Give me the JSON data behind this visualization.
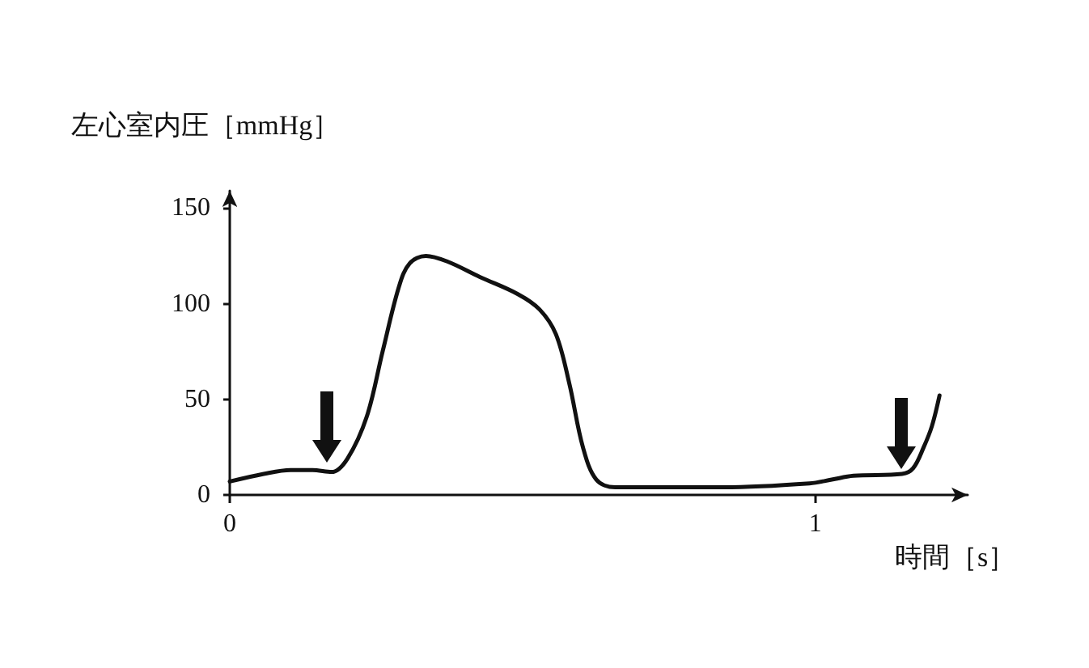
{
  "chart_data": {
    "type": "line",
    "xlabel": "時間［s］",
    "ylabel": "左心室内圧［mmHg］",
    "xlim": [
      0,
      1.26
    ],
    "xticks": [
      0,
      1
    ],
    "ylim": [
      0,
      159
    ],
    "yticks": [
      0,
      50,
      100,
      150
    ],
    "grid": false,
    "marker": "none",
    "line_style": "solid",
    "series": [
      {
        "color": "#111111",
        "x": [
          0,
          0.058,
          0.104,
          0.141,
          0.174,
          0.201,
          0.234,
          0.261,
          0.289,
          0.307,
          0.335,
          0.372,
          0.427,
          0.492,
          0.529,
          0.557,
          0.58,
          0.603,
          0.626,
          0.658,
          0.843,
          0.99,
          1.028,
          1.065,
          1.148,
          1.167,
          1.185,
          1.199,
          1.212
        ],
        "values": [
          7,
          11,
          13,
          13,
          12,
          19,
          41,
          75,
          109,
          121,
          125,
          122,
          114,
          105,
          97,
          84,
          58,
          25,
          8,
          4,
          4,
          6,
          8,
          10,
          11,
          14,
          25,
          36,
          52
        ]
      }
    ]
  }
}
